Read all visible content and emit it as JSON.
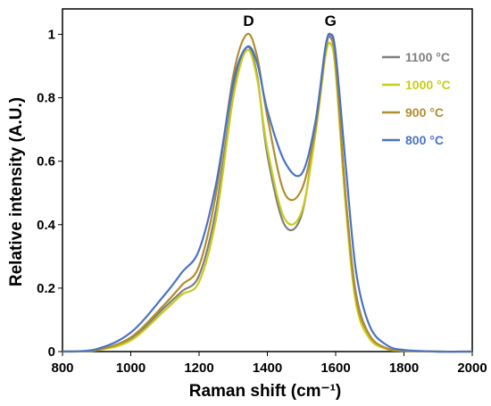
{
  "chart_data": {
    "type": "line",
    "title": "",
    "xlabel": "Raman shift (cm⁻¹)",
    "ylabel": "Relative intensity  (A.U.)",
    "xlim": [
      800,
      2000
    ],
    "ylim": [
      0,
      1.08
    ],
    "xticks": [
      800,
      1000,
      1200,
      1400,
      1600,
      1800,
      2000
    ],
    "yticks": [
      0,
      0.2,
      0.4,
      0.6,
      0.8,
      1
    ],
    "xtick_labels": [
      "800",
      "1000",
      "1200",
      "1400",
      "1600",
      "1800",
      "2000"
    ],
    "ytick_labels": [
      "0",
      "0.2",
      "0.4",
      "0.6",
      "0.8",
      "1"
    ],
    "grid": false,
    "legend_position": "top-right",
    "annotations": [
      {
        "text": "D",
        "x": 1345
      },
      {
        "text": "G",
        "x": 1585
      }
    ],
    "x": [
      800,
      900,
      1000,
      1100,
      1150,
      1200,
      1250,
      1300,
      1340,
      1370,
      1400,
      1450,
      1500,
      1540,
      1570,
      1585,
      1600,
      1630,
      1660,
      1700,
      1750,
      1800,
      1900,
      2000
    ],
    "series": [
      {
        "name": "1100 °C",
        "color": "#7f7f7f",
        "values": [
          0.0,
          0.005,
          0.04,
          0.14,
          0.19,
          0.24,
          0.45,
          0.82,
          0.96,
          0.87,
          0.62,
          0.4,
          0.43,
          0.7,
          0.95,
          0.99,
          0.9,
          0.48,
          0.18,
          0.05,
          0.01,
          0.003,
          0.0,
          0.0
        ]
      },
      {
        "name": "1000 °C",
        "color": "#c9cc1a",
        "values": [
          0.0,
          0.004,
          0.035,
          0.13,
          0.18,
          0.22,
          0.42,
          0.8,
          0.95,
          0.86,
          0.64,
          0.42,
          0.44,
          0.68,
          0.93,
          0.97,
          0.88,
          0.45,
          0.15,
          0.04,
          0.008,
          0.002,
          0.0,
          0.0
        ]
      },
      {
        "name": "900 °C",
        "color": "#b08d2d",
        "values": [
          0.0,
          0.005,
          0.045,
          0.15,
          0.21,
          0.27,
          0.5,
          0.87,
          1.0,
          0.93,
          0.74,
          0.5,
          0.51,
          0.7,
          0.95,
          1.0,
          0.91,
          0.48,
          0.17,
          0.05,
          0.01,
          0.003,
          0.0,
          0.0
        ]
      },
      {
        "name": "800 °C",
        "color": "#4a72c4",
        "values": [
          0.0,
          0.008,
          0.06,
          0.18,
          0.25,
          0.32,
          0.53,
          0.85,
          0.96,
          0.91,
          0.76,
          0.6,
          0.56,
          0.72,
          0.96,
          1.0,
          0.94,
          0.58,
          0.25,
          0.08,
          0.02,
          0.005,
          0.0,
          0.0
        ]
      }
    ]
  }
}
